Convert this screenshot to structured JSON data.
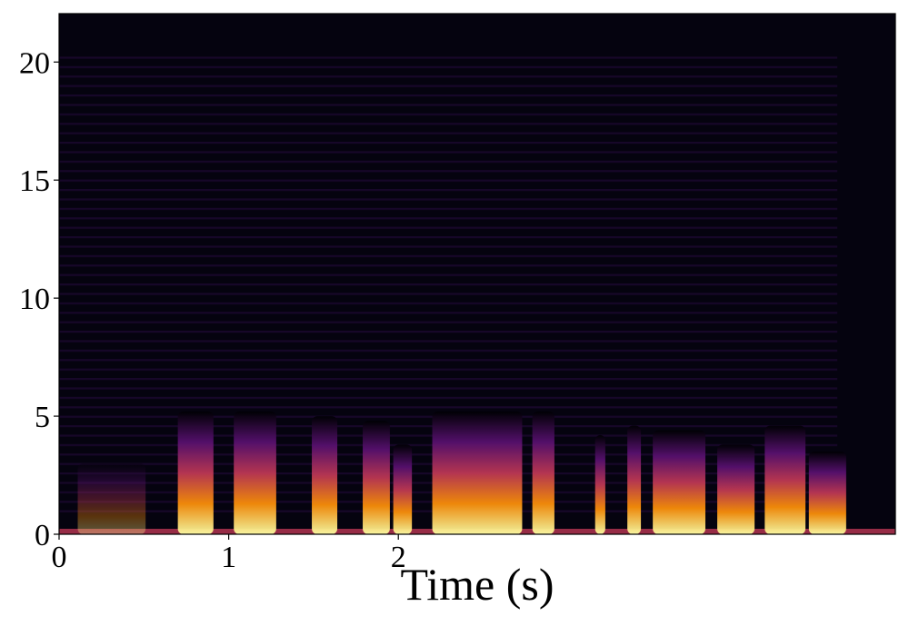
{
  "chart_data": {
    "type": "spectrogram",
    "xlabel": "Time (s)",
    "xlim": [
      0,
      4.93
    ],
    "ylim": [
      0,
      22.05
    ],
    "xticks": [
      0,
      1,
      2
    ],
    "yticks": [
      0,
      5,
      10,
      15,
      20
    ],
    "colors": [
      "#fcffa4",
      "#f98e09",
      "#bc3754",
      "#57106e",
      "#000004"
    ],
    "events": [
      {
        "start": 0.11,
        "end": 0.51,
        "top": 3.0
      },
      {
        "start": 0.7,
        "end": 0.91,
        "top": 5.2
      },
      {
        "start": 1.03,
        "end": 1.28,
        "top": 5.2
      },
      {
        "start": 1.49,
        "end": 1.64,
        "top": 5.0
      },
      {
        "start": 1.79,
        "end": 1.95,
        "top": 4.8
      },
      {
        "start": 1.97,
        "end": 2.08,
        "top": 3.8
      },
      {
        "start": 2.2,
        "end": 2.73,
        "top": 5.2
      },
      {
        "start": 2.79,
        "end": 2.92,
        "top": 5.2
      },
      {
        "start": 3.16,
        "end": 3.22,
        "top": 4.2
      },
      {
        "start": 3.35,
        "end": 3.43,
        "top": 4.6
      },
      {
        "start": 3.5,
        "end": 3.81,
        "top": 4.4
      },
      {
        "start": 3.88,
        "end": 4.1,
        "top": 3.8
      },
      {
        "start": 4.16,
        "end": 4.4,
        "top": 4.6
      },
      {
        "start": 4.42,
        "end": 4.64,
        "top": 3.5
      }
    ]
  }
}
